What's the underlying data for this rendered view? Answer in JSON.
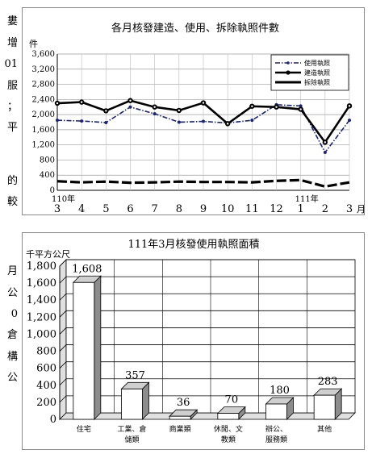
{
  "side_text": [
    "婁",
    "增",
    "01",
    "服",
    "；",
    "平",
    "的",
    "較",
    "月",
    "公",
    "0",
    "倉",
    "構",
    "公"
  ],
  "chart_data": [
    {
      "type": "line",
      "title": "各月核發建造、使用、拆除執照件數",
      "ylabel": "件",
      "xlabel": "月",
      "x": [
        "3",
        "4",
        "5",
        "6",
        "7",
        "8",
        "9",
        "10",
        "11",
        "12",
        "1",
        "2",
        "3"
      ],
      "year_labels": [
        {
          "index": 0,
          "text": "110年"
        },
        {
          "index": 10,
          "text": "111年"
        }
      ],
      "ylim": [
        0,
        3600
      ],
      "yticks": [
        0,
        400,
        800,
        1200,
        1600,
        2000,
        2400,
        2800,
        3200,
        3600
      ],
      "ytick_labels": [
        "0",
        "400",
        "800",
        "1,200",
        "1,600",
        "2,000",
        "2,400",
        "2,800",
        "3,200",
        "3,600"
      ],
      "grid": true,
      "legend_position": "top-right",
      "series": [
        {
          "name": "使用執照",
          "color": "#1a237e",
          "style": "dashdot",
          "values": [
            1850,
            1830,
            1790,
            2200,
            2020,
            1800,
            1820,
            1780,
            1850,
            2260,
            2230,
            1000,
            1850
          ]
        },
        {
          "name": "建造執照",
          "color": "#000000",
          "style": "solid-marker",
          "values": [
            2300,
            2330,
            2100,
            2370,
            2200,
            2110,
            2310,
            1760,
            2220,
            2200,
            2140,
            1270,
            2230
          ]
        },
        {
          "name": "拆除執照",
          "color": "#000000",
          "style": "thick-dash",
          "values": [
            240,
            210,
            230,
            200,
            210,
            230,
            220,
            220,
            210,
            250,
            270,
            100,
            210
          ]
        }
      ]
    },
    {
      "type": "bar",
      "title": "111年3月核發使用執照面積",
      "ylabel": "千平方公尺",
      "categories": [
        [
          "住宅"
        ],
        [
          "工業、倉",
          "儲類"
        ],
        [
          "商業類"
        ],
        [
          "休閒、文",
          "教類"
        ],
        [
          "辦公、",
          "服務類"
        ],
        [
          "其他"
        ]
      ],
      "values": [
        1608,
        357,
        36,
        70,
        180,
        283
      ],
      "value_labels": [
        "1,608",
        "357",
        "36",
        "70",
        "180",
        "283"
      ],
      "ylim": [
        0,
        1800
      ],
      "yticks": [
        0,
        200,
        400,
        600,
        800,
        1000,
        1200,
        1400,
        1600,
        1800
      ],
      "ytick_labels": [
        "0",
        "200",
        "400",
        "600",
        "800",
        "1,000",
        "1,200",
        "1,400",
        "1,600",
        "1,800"
      ],
      "grid": true
    }
  ]
}
